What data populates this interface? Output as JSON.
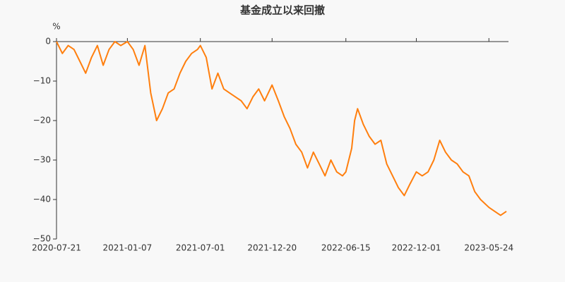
{
  "chart_data": {
    "type": "line",
    "title": "基金成立以来回撤",
    "y_label": "%",
    "x": [
      "2020-07-21",
      "2020-08-04",
      "2020-08-18",
      "2020-09-01",
      "2020-09-15",
      "2020-09-29",
      "2020-10-13",
      "2020-10-27",
      "2020-11-10",
      "2020-11-24",
      "2020-12-08",
      "2020-12-22",
      "2021-01-07",
      "2021-01-21",
      "2021-02-04",
      "2021-02-18",
      "2021-03-04",
      "2021-03-18",
      "2021-04-01",
      "2021-04-15",
      "2021-04-29",
      "2021-05-13",
      "2021-05-27",
      "2021-06-10",
      "2021-06-24",
      "2021-07-01",
      "2021-07-15",
      "2021-07-29",
      "2021-08-12",
      "2021-08-26",
      "2021-09-09",
      "2021-09-23",
      "2021-10-07",
      "2021-10-21",
      "2021-11-04",
      "2021-11-18",
      "2021-12-02",
      "2021-12-20",
      "2022-01-04",
      "2022-01-18",
      "2022-02-01",
      "2022-02-15",
      "2022-03-01",
      "2022-03-15",
      "2022-03-29",
      "2022-04-12",
      "2022-04-26",
      "2022-05-10",
      "2022-05-24",
      "2022-06-07",
      "2022-06-15",
      "2022-06-29",
      "2022-07-06",
      "2022-07-13",
      "2022-07-27",
      "2022-08-10",
      "2022-08-24",
      "2022-09-07",
      "2022-09-21",
      "2022-10-05",
      "2022-10-19",
      "2022-11-02",
      "2022-11-16",
      "2022-12-01",
      "2022-12-15",
      "2022-12-29",
      "2023-01-12",
      "2023-01-26",
      "2023-02-09",
      "2023-02-23",
      "2023-03-09",
      "2023-03-23",
      "2023-04-06",
      "2023-04-20",
      "2023-05-04",
      "2023-05-24",
      "2023-06-07",
      "2023-06-21",
      "2023-07-05"
    ],
    "series": [
      {
        "color": "#ff7f0e",
        "values": [
          0,
          -3,
          -1,
          -2,
          -5,
          -8,
          -4,
          -1,
          -6,
          -2,
          0,
          -1,
          0,
          -2,
          -6,
          -1,
          -13,
          -20,
          -17,
          -13,
          -12,
          -8,
          -5,
          -3,
          -2,
          -1,
          -4,
          -12,
          -8,
          -12,
          -13,
          -14,
          -15,
          -17,
          -14,
          -12,
          -15,
          -11,
          -15,
          -19,
          -22,
          -26,
          -28,
          -32,
          -28,
          -31,
          -34,
          -30,
          -33,
          -34,
          -33,
          -27,
          -20,
          -17,
          -21,
          -24,
          -26,
          -25,
          -31,
          -34,
          -37,
          -39,
          -36,
          -33,
          -34,
          -33,
          -30,
          -25,
          -28,
          -30,
          -31,
          -33,
          -34,
          -38,
          -40,
          -42,
          -43,
          -44,
          -43
        ]
      }
    ],
    "xlim": [
      "2020-07-21",
      "2023-07-10"
    ],
    "xticks": [
      "2020-07-21",
      "2021-01-07",
      "2021-07-01",
      "2021-12-20",
      "2022-06-15",
      "2022-12-01",
      "2023-05-24"
    ],
    "ylim": [
      -50,
      0
    ],
    "yticks": [
      0,
      {
        "value": -10,
        "label": "−10"
      },
      {
        "value": -20,
        "label": "−20"
      },
      {
        "value": -30,
        "label": "−30"
      },
      {
        "value": -40,
        "label": "−40"
      },
      {
        "value": -50,
        "label": "−50"
      }
    ]
  }
}
